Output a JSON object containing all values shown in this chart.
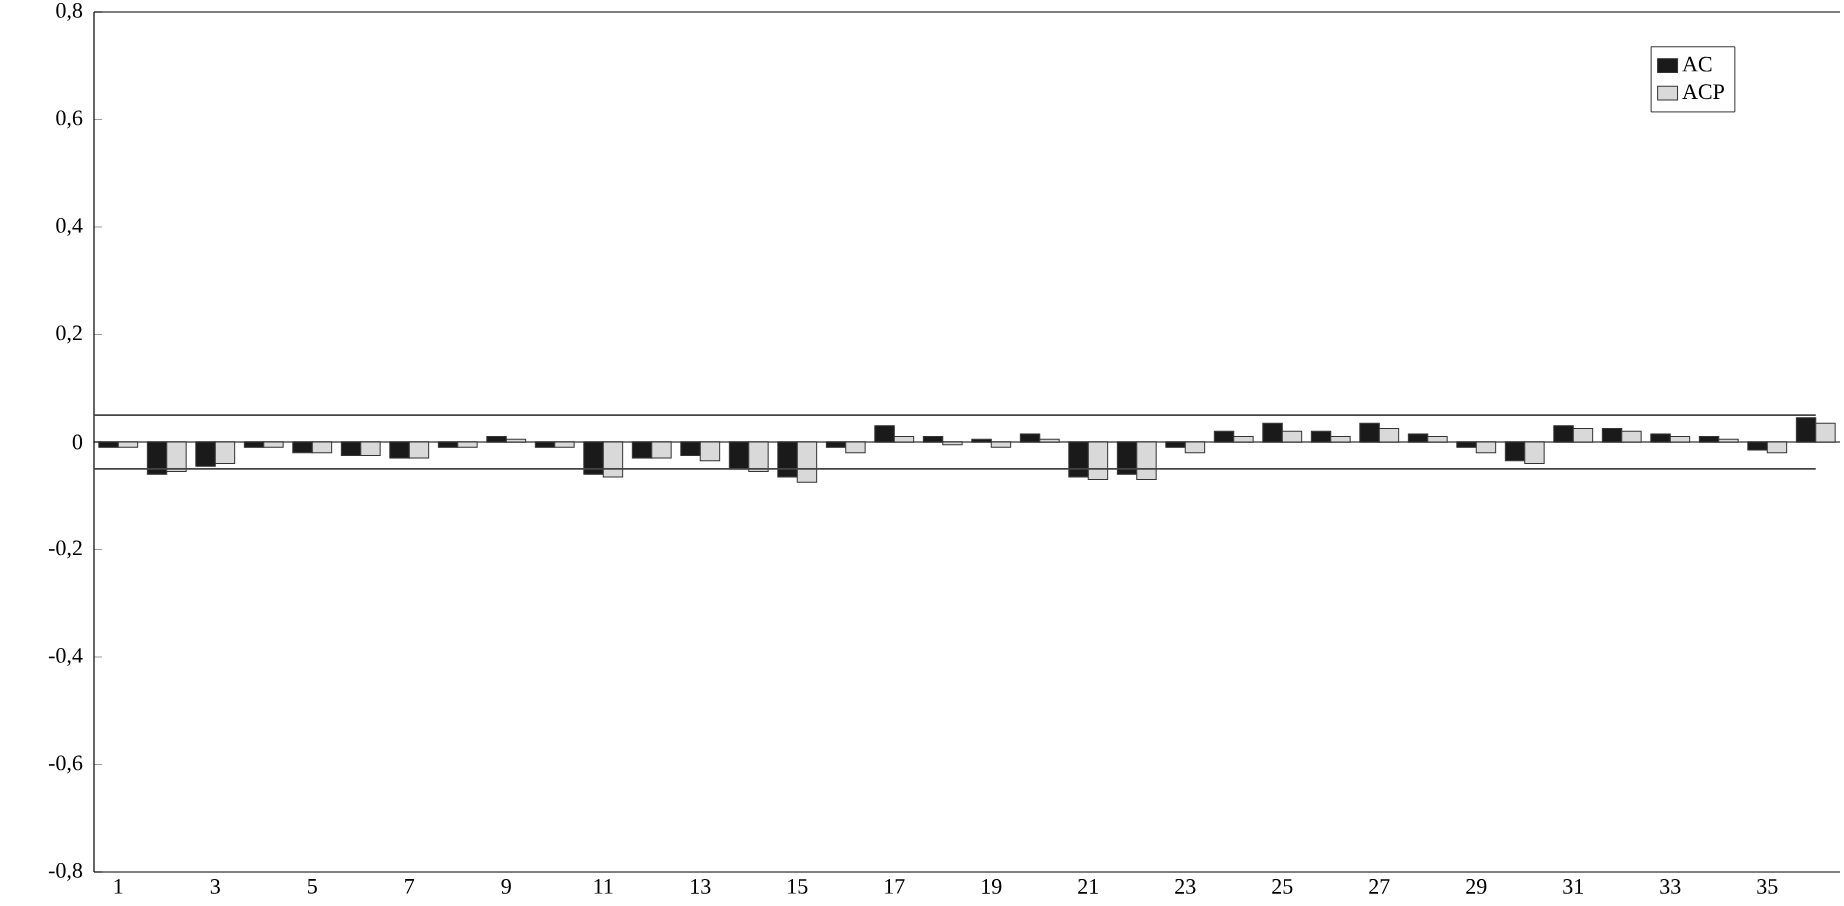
{
  "chart_data": {
    "type": "bar",
    "categories": [
      "1",
      null,
      "3",
      null,
      "5",
      null,
      "7",
      null,
      "9",
      null,
      "11",
      null,
      "13",
      null,
      "15",
      null,
      "17",
      null,
      "19",
      null,
      "21",
      null,
      "23",
      null,
      "25",
      null,
      "27",
      null,
      "29",
      null,
      "31",
      null,
      "33",
      null,
      "35",
      null
    ],
    "series": [
      {
        "name": "AC",
        "color": "#1a1a1a",
        "values": [
          -0.01,
          -0.06,
          -0.045,
          -0.01,
          -0.02,
          -0.025,
          -0.03,
          -0.01,
          0.01,
          -0.01,
          -0.06,
          -0.03,
          -0.025,
          -0.05,
          -0.065,
          -0.01,
          0.03,
          0.01,
          0.005,
          0.015,
          -0.065,
          -0.06,
          -0.01,
          0.02,
          0.035,
          0.02,
          0.035,
          0.015,
          -0.01,
          -0.035,
          0.03,
          0.025,
          0.015,
          0.01,
          -0.015,
          0.045
        ]
      },
      {
        "name": "ACP",
        "color": "#d9d9d9",
        "values": [
          -0.01,
          -0.055,
          -0.04,
          -0.01,
          -0.02,
          -0.025,
          -0.03,
          -0.01,
          0.005,
          -0.01,
          -0.065,
          -0.03,
          -0.035,
          -0.055,
          -0.075,
          -0.02,
          0.01,
          -0.005,
          -0.01,
          0.005,
          -0.07,
          -0.07,
          -0.02,
          0.01,
          0.02,
          0.01,
          0.025,
          0.01,
          -0.02,
          -0.04,
          0.025,
          0.02,
          0.01,
          0.005,
          -0.02,
          0.035
        ]
      }
    ],
    "ylim": [
      -0.8,
      0.8
    ],
    "yticks": [
      {
        "value": -0.8,
        "label": "-0,8"
      },
      {
        "value": -0.6,
        "label": "-0,6"
      },
      {
        "value": -0.4,
        "label": "-0,4"
      },
      {
        "value": -0.2,
        "label": "-0,2"
      },
      {
        "value": 0,
        "label": "0"
      },
      {
        "value": 0.2,
        "label": "0,2"
      },
      {
        "value": 0.4,
        "label": "0,4"
      },
      {
        "value": 0.6,
        "label": "0,6"
      },
      {
        "value": 0.8,
        "label": "0,8"
      }
    ],
    "ref_lines": [
      {
        "axis": "y",
        "value": 0.05,
        "color": "#444444"
      },
      {
        "axis": "y",
        "value": -0.05,
        "color": "#444444"
      }
    ],
    "legend": "top right"
  }
}
